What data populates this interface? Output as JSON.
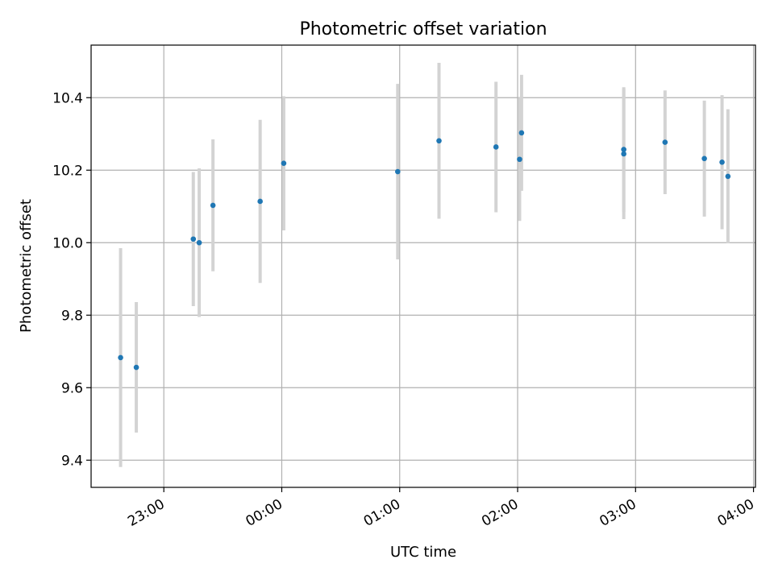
{
  "chart_data": {
    "type": "scatter",
    "title": "Photometric offset variation",
    "xlabel": "UTC time",
    "ylabel": "Photometric offset",
    "x_ticks": [
      "23:00",
      "00:00",
      "01:00",
      "02:00",
      "03:00",
      "04:00"
    ],
    "y_ticks": [
      "9.4",
      "9.6",
      "9.8",
      "10.0",
      "10.2",
      "10.4"
    ],
    "xlim": [
      "22:23",
      "04:01"
    ],
    "ylim": [
      9.325,
      10.545
    ],
    "grid": true,
    "colors": {
      "point": "#1f77b4",
      "errorbar": "#d3d3d3",
      "grid": "#b0b0b0"
    },
    "points": [
      {
        "time": "22:38",
        "y": 9.683,
        "err": 0.302
      },
      {
        "time": "22:46",
        "y": 9.656,
        "err": 0.18
      },
      {
        "time": "23:15",
        "y": 10.01,
        "err": 0.185
      },
      {
        "time": "23:18",
        "y": 10.0,
        "err": 0.205
      },
      {
        "time": "23:25",
        "y": 10.103,
        "err": 0.182
      },
      {
        "time": "23:49",
        "y": 10.114,
        "err": 0.225
      },
      {
        "time": "00:01",
        "y": 10.219,
        "err": 0.185
      },
      {
        "time": "00:59",
        "y": 10.196,
        "err": 0.242
      },
      {
        "time": "01:20",
        "y": 10.281,
        "err": 0.215
      },
      {
        "time": "01:49",
        "y": 10.264,
        "err": 0.18
      },
      {
        "time": "02:01",
        "y": 10.23,
        "err": 0.17
      },
      {
        "time": "02:02",
        "y": 10.303,
        "err": 0.16
      },
      {
        "time": "02:54",
        "y": 10.257,
        "err": 0.172
      },
      {
        "time": "02:54",
        "y": 10.245,
        "err": 0.18
      },
      {
        "time": "03:15",
        "y": 10.277,
        "err": 0.143
      },
      {
        "time": "03:35",
        "y": 10.232,
        "err": 0.16
      },
      {
        "time": "03:44",
        "y": 10.222,
        "err": 0.185
      },
      {
        "time": "03:47",
        "y": 10.183,
        "err": 0.185
      }
    ]
  }
}
